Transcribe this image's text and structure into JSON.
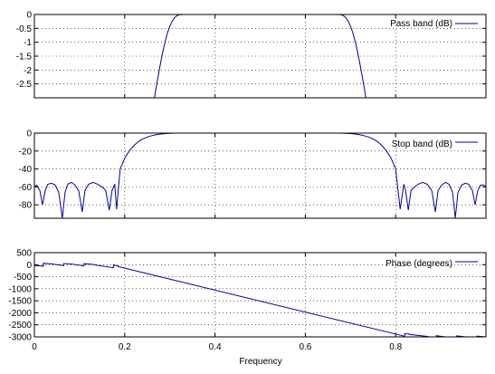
{
  "chart_data": [
    {
      "type": "line",
      "title": "",
      "xlabel": "",
      "ylabel": "",
      "xlim": [
        0,
        1
      ],
      "ylim": [
        -3,
        0
      ],
      "grid": true,
      "legend_position": "top-right",
      "xticks": [
        0,
        0.2,
        0.4,
        0.6,
        0.8
      ],
      "yticks": [
        0,
        -0.5,
        -1,
        -1.5,
        -2,
        -2.5
      ],
      "ytick_labels": [
        "0",
        "-0.5",
        "-1",
        "-1.5",
        "-2",
        "-2.5"
      ],
      "show_xtick_labels": false,
      "series": [
        {
          "name": "Pass band (dB)",
          "color": "#0000a0",
          "x": [
            0.266,
            0.27,
            0.275,
            0.28,
            0.285,
            0.29,
            0.295,
            0.3,
            0.305,
            0.31,
            0.315,
            0.32,
            0.33,
            0.35,
            0.4,
            0.45,
            0.5,
            0.55,
            0.6,
            0.65,
            0.67,
            0.68,
            0.685,
            0.69,
            0.695,
            0.7,
            0.705,
            0.71,
            0.715,
            0.72,
            0.725,
            0.73,
            0.734
          ],
          "y": [
            -3.0,
            -2.6,
            -2.15,
            -1.7,
            -1.3,
            -0.95,
            -0.65,
            -0.42,
            -0.25,
            -0.12,
            -0.05,
            -0.01,
            0,
            0,
            0,
            0,
            0,
            0,
            0,
            0,
            0,
            -0.01,
            -0.05,
            -0.12,
            -0.25,
            -0.42,
            -0.65,
            -0.95,
            -1.3,
            -1.7,
            -2.15,
            -2.6,
            -3.0
          ]
        }
      ]
    },
    {
      "type": "line",
      "title": "",
      "xlabel": "",
      "ylabel": "",
      "xlim": [
        0,
        1
      ],
      "ylim": [
        -95,
        0
      ],
      "grid": true,
      "legend_position": "top-right",
      "xticks": [
        0,
        0.2,
        0.4,
        0.6,
        0.8
      ],
      "yticks": [
        0,
        -20,
        -40,
        -60,
        -80
      ],
      "ytick_labels": [
        "0",
        "-20",
        "-40",
        "-60",
        "-80"
      ],
      "show_xtick_labels": false,
      "series": [
        {
          "name": "Stop band (dB)",
          "color": "#0000a0",
          "x": [
            0,
            0.005,
            0.012,
            0.018,
            0.024,
            0.03,
            0.038,
            0.046,
            0.054,
            0.062,
            0.068,
            0.074,
            0.082,
            0.09,
            0.098,
            0.106,
            0.112,
            0.12,
            0.13,
            0.14,
            0.15,
            0.158,
            0.166,
            0.172,
            0.178,
            0.182,
            0.19,
            0.2,
            0.21,
            0.22,
            0.23,
            0.24,
            0.25,
            0.26,
            0.27,
            0.28,
            0.29,
            0.3,
            0.31,
            0.32,
            0.33,
            0.4,
            0.5,
            0.6,
            0.67,
            0.68,
            0.69,
            0.7,
            0.71,
            0.72,
            0.73,
            0.74,
            0.75,
            0.76,
            0.77,
            0.78,
            0.79,
            0.8,
            0.81,
            0.818,
            0.822,
            0.828,
            0.834,
            0.842,
            0.85,
            0.86,
            0.87,
            0.88,
            0.888,
            0.894,
            0.902,
            0.91,
            0.918,
            0.926,
            0.932,
            0.938,
            0.946,
            0.954,
            0.962,
            0.97,
            0.976,
            0.982,
            0.988,
            0.995,
            1.0
          ],
          "y": [
            -60,
            -58,
            -64,
            -80,
            -64,
            -57,
            -56,
            -58,
            -66,
            -95,
            -66,
            -57,
            -55,
            -58,
            -64,
            -88,
            -64,
            -57,
            -55,
            -57,
            -60,
            -64,
            -86,
            -64,
            -57,
            -85,
            -40,
            -28,
            -20,
            -14,
            -9.5,
            -6.5,
            -4.3,
            -2.8,
            -1.7,
            -1,
            -0.5,
            -0.2,
            -0.05,
            0,
            0,
            0,
            0,
            0,
            0,
            -0.05,
            -0.2,
            -0.5,
            -1,
            -1.7,
            -2.8,
            -4.3,
            -6.5,
            -9.5,
            -14,
            -20,
            -28,
            -40,
            -85,
            -57,
            -64,
            -86,
            -64,
            -60,
            -57,
            -55,
            -57,
            -64,
            -88,
            -64,
            -58,
            -55,
            -57,
            -66,
            -95,
            -66,
            -58,
            -56,
            -57,
            -64,
            -80,
            -64,
            -58,
            -58,
            -60
          ]
        }
      ]
    },
    {
      "type": "line",
      "title": "",
      "xlabel": "Frequency",
      "ylabel": "",
      "xlim": [
        0,
        1
      ],
      "ylim": [
        -3000,
        500
      ],
      "grid": true,
      "legend_position": "top-right",
      "xticks": [
        0,
        0.2,
        0.4,
        0.6,
        0.8
      ],
      "xtick_labels": [
        "0",
        "0.2",
        "0.4",
        "0.6",
        "0.8"
      ],
      "yticks": [
        500,
        0,
        -500,
        -1000,
        -1500,
        -2000,
        -2500,
        -3000
      ],
      "ytick_labels": [
        "500",
        "0",
        "-500",
        "-1000",
        "-1500",
        "-2000",
        "-2500",
        "-3000"
      ],
      "show_xtick_labels": true,
      "series": [
        {
          "name": "Phase (degrees)",
          "color": "#0000a0",
          "x": [
            0.0,
            0.02,
            0.02,
            0.04,
            0.045,
            0.065,
            0.065,
            0.085,
            0.09,
            0.11,
            0.11,
            0.13,
            0.135,
            0.175,
            0.175,
            0.185,
            0.185,
            0.19,
            0.815,
            0.82,
            0.82,
            0.83,
            0.83,
            0.87,
            0.875,
            0.89,
            0.89,
            0.91,
            0.915,
            0.935,
            0.935,
            0.955,
            0.96,
            0.98,
            0.98,
            1.0
          ],
          "y": [
            -30,
            -60,
            60,
            30,
            10,
            -40,
            50,
            20,
            0,
            -50,
            40,
            10,
            -10,
            -130,
            -10,
            -50,
            -80,
            -100,
            -2950,
            -2980,
            -2870,
            -2880,
            -2900,
            -2980,
            -3000,
            -3050,
            -2950,
            -3000,
            -3020,
            -3060,
            -2960,
            -3010,
            -3030,
            -3080,
            -2970,
            -3010
          ]
        }
      ]
    }
  ]
}
